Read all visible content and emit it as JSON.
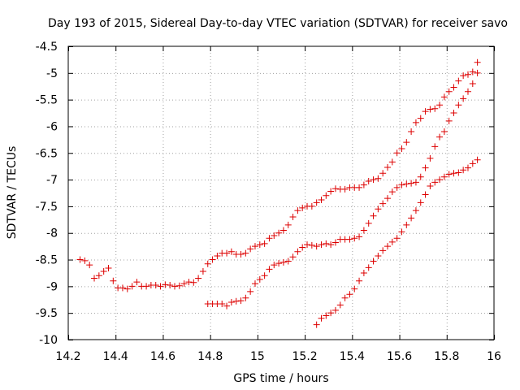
{
  "chart_data": {
    "type": "scatter",
    "title": "Day 193 of 2015, Sidereal Day-to-day VTEC variation (SDTVAR) for receiver savo",
    "xlabel": "GPS time / hours",
    "ylabel": "SDTVAR / TECUs",
    "xlim": [
      14.2,
      16
    ],
    "ylim": [
      -10,
      -4.5
    ],
    "xticks": [
      14.2,
      14.4,
      14.6,
      14.8,
      15,
      15.2,
      15.4,
      15.6,
      15.8,
      16
    ],
    "xtick_labels": [
      "14.2",
      "14.4",
      "14.6",
      "14.8",
      "15",
      "15.2",
      "15.4",
      "15.6",
      "15.8",
      "16"
    ],
    "yticks": [
      -10,
      -9.5,
      -9,
      -8.5,
      -8,
      -7.5,
      -7,
      -6.5,
      -6,
      -5.5,
      -5,
      -4.5
    ],
    "ytick_labels": [
      "-10",
      "-9.5",
      "-9",
      "-8.5",
      "-8",
      "-7.5",
      "-7",
      "-6.5",
      "-6",
      "-5.5",
      "-5",
      "-4.5"
    ],
    "grid": true,
    "marker": "+",
    "color": "#dd0000",
    "series": [
      {
        "points": [
          [
            14.25,
            -8.5
          ],
          [
            14.27,
            -8.52
          ],
          [
            14.29,
            -8.6
          ],
          [
            14.31,
            -8.85
          ],
          [
            14.33,
            -8.8
          ],
          [
            14.35,
            -8.72
          ],
          [
            14.37,
            -8.66
          ],
          [
            14.39,
            -8.9
          ],
          [
            14.41,
            -9.03
          ],
          [
            14.43,
            -9.03
          ],
          [
            14.45,
            -9.05
          ],
          [
            14.47,
            -9.0
          ],
          [
            14.49,
            -8.92
          ],
          [
            14.51,
            -9.0
          ],
          [
            14.53,
            -9.0
          ],
          [
            14.55,
            -8.98
          ],
          [
            14.57,
            -8.98
          ],
          [
            14.59,
            -9.0
          ],
          [
            14.61,
            -8.97
          ],
          [
            14.63,
            -8.98
          ],
          [
            14.65,
            -9.0
          ],
          [
            14.67,
            -8.99
          ],
          [
            14.69,
            -8.95
          ],
          [
            14.71,
            -8.92
          ],
          [
            14.73,
            -8.93
          ],
          [
            14.75,
            -8.85
          ],
          [
            14.77,
            -8.72
          ],
          [
            14.79,
            -8.58
          ],
          [
            14.81,
            -8.5
          ],
          [
            14.83,
            -8.43
          ],
          [
            14.85,
            -8.38
          ],
          [
            14.87,
            -8.38
          ],
          [
            14.89,
            -8.35
          ],
          [
            14.91,
            -8.4
          ],
          [
            14.93,
            -8.4
          ],
          [
            14.95,
            -8.38
          ],
          [
            14.97,
            -8.3
          ],
          [
            14.99,
            -8.25
          ],
          [
            15.01,
            -8.22
          ],
          [
            15.03,
            -8.2
          ],
          [
            15.05,
            -8.1
          ],
          [
            15.07,
            -8.05
          ],
          [
            15.09,
            -8.0
          ],
          [
            15.11,
            -7.95
          ],
          [
            15.13,
            -7.85
          ],
          [
            15.15,
            -7.7
          ],
          [
            15.17,
            -7.58
          ],
          [
            15.19,
            -7.53
          ],
          [
            15.21,
            -7.5
          ],
          [
            15.23,
            -7.5
          ],
          [
            15.25,
            -7.43
          ],
          [
            15.27,
            -7.38
          ],
          [
            15.29,
            -7.3
          ],
          [
            15.31,
            -7.22
          ],
          [
            15.33,
            -7.17
          ],
          [
            15.35,
            -7.18
          ],
          [
            15.37,
            -7.18
          ],
          [
            15.39,
            -7.15
          ],
          [
            15.41,
            -7.15
          ],
          [
            15.43,
            -7.15
          ],
          [
            15.45,
            -7.1
          ],
          [
            15.47,
            -7.03
          ],
          [
            15.49,
            -7.0
          ],
          [
            15.51,
            -6.98
          ],
          [
            15.53,
            -6.88
          ],
          [
            15.55,
            -6.77
          ],
          [
            15.57,
            -6.67
          ],
          [
            15.59,
            -6.5
          ],
          [
            15.61,
            -6.42
          ],
          [
            15.63,
            -6.3
          ],
          [
            15.65,
            -6.1
          ],
          [
            15.67,
            -5.93
          ],
          [
            15.69,
            -5.85
          ],
          [
            15.71,
            -5.72
          ],
          [
            15.73,
            -5.68
          ],
          [
            15.75,
            -5.67
          ],
          [
            15.77,
            -5.6
          ],
          [
            15.79,
            -5.45
          ],
          [
            15.81,
            -5.35
          ],
          [
            15.83,
            -5.27
          ],
          [
            15.85,
            -5.15
          ],
          [
            15.87,
            -5.05
          ],
          [
            15.89,
            -5.03
          ],
          [
            15.91,
            -4.98
          ],
          [
            15.93,
            -4.8
          ]
        ]
      },
      {
        "points": [
          [
            14.79,
            -9.33
          ],
          [
            14.81,
            -9.33
          ],
          [
            14.83,
            -9.33
          ],
          [
            14.85,
            -9.33
          ],
          [
            14.87,
            -9.37
          ],
          [
            14.89,
            -9.3
          ],
          [
            14.91,
            -9.28
          ],
          [
            14.93,
            -9.27
          ],
          [
            14.95,
            -9.22
          ],
          [
            14.97,
            -9.1
          ],
          [
            14.99,
            -8.95
          ],
          [
            15.01,
            -8.87
          ],
          [
            15.03,
            -8.8
          ],
          [
            15.05,
            -8.68
          ],
          [
            15.07,
            -8.6
          ],
          [
            15.09,
            -8.57
          ],
          [
            15.11,
            -8.55
          ],
          [
            15.13,
            -8.53
          ],
          [
            15.15,
            -8.45
          ],
          [
            15.17,
            -8.35
          ],
          [
            15.19,
            -8.27
          ],
          [
            15.21,
            -8.22
          ],
          [
            15.23,
            -8.23
          ],
          [
            15.25,
            -8.25
          ],
          [
            15.27,
            -8.22
          ],
          [
            15.29,
            -8.2
          ],
          [
            15.31,
            -8.22
          ],
          [
            15.33,
            -8.18
          ],
          [
            15.35,
            -8.12
          ],
          [
            15.37,
            -8.12
          ],
          [
            15.39,
            -8.12
          ],
          [
            15.41,
            -8.1
          ],
          [
            15.43,
            -8.07
          ],
          [
            15.45,
            -7.95
          ],
          [
            15.47,
            -7.82
          ],
          [
            15.49,
            -7.68
          ],
          [
            15.51,
            -7.55
          ],
          [
            15.53,
            -7.45
          ],
          [
            15.55,
            -7.35
          ],
          [
            15.57,
            -7.23
          ],
          [
            15.59,
            -7.15
          ],
          [
            15.61,
            -7.1
          ],
          [
            15.63,
            -7.08
          ],
          [
            15.65,
            -7.07
          ],
          [
            15.67,
            -7.05
          ],
          [
            15.69,
            -6.95
          ],
          [
            15.71,
            -6.78
          ],
          [
            15.73,
            -6.6
          ],
          [
            15.75,
            -6.38
          ],
          [
            15.77,
            -6.2
          ],
          [
            15.79,
            -6.1
          ],
          [
            15.81,
            -5.9
          ],
          [
            15.83,
            -5.75
          ],
          [
            15.85,
            -5.6
          ],
          [
            15.87,
            -5.48
          ],
          [
            15.89,
            -5.35
          ],
          [
            15.91,
            -5.2
          ],
          [
            15.93,
            -5.0
          ]
        ]
      },
      {
        "points": [
          [
            15.25,
            -9.72
          ],
          [
            15.27,
            -9.6
          ],
          [
            15.29,
            -9.55
          ],
          [
            15.31,
            -9.5
          ],
          [
            15.33,
            -9.45
          ],
          [
            15.35,
            -9.35
          ],
          [
            15.37,
            -9.22
          ],
          [
            15.39,
            -9.15
          ],
          [
            15.41,
            -9.05
          ],
          [
            15.43,
            -8.9
          ],
          [
            15.45,
            -8.75
          ],
          [
            15.47,
            -8.65
          ],
          [
            15.49,
            -8.53
          ],
          [
            15.51,
            -8.43
          ],
          [
            15.53,
            -8.33
          ],
          [
            15.55,
            -8.25
          ],
          [
            15.57,
            -8.17
          ],
          [
            15.59,
            -8.1
          ],
          [
            15.61,
            -7.98
          ],
          [
            15.63,
            -7.85
          ],
          [
            15.65,
            -7.72
          ],
          [
            15.67,
            -7.58
          ],
          [
            15.69,
            -7.43
          ],
          [
            15.71,
            -7.28
          ],
          [
            15.73,
            -7.12
          ],
          [
            15.75,
            -7.05
          ],
          [
            15.77,
            -7.0
          ],
          [
            15.79,
            -6.95
          ],
          [
            15.81,
            -6.9
          ],
          [
            15.83,
            -6.88
          ],
          [
            15.85,
            -6.87
          ],
          [
            15.87,
            -6.82
          ],
          [
            15.89,
            -6.78
          ],
          [
            15.91,
            -6.7
          ],
          [
            15.93,
            -6.63
          ]
        ]
      }
    ]
  }
}
